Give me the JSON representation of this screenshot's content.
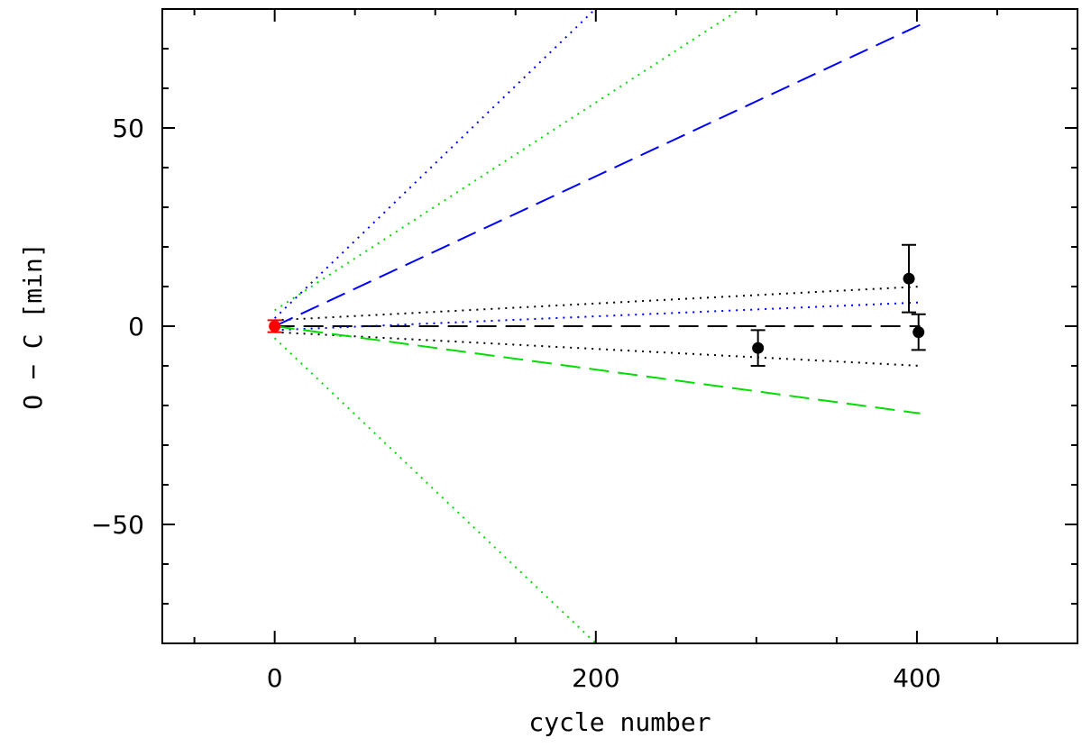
{
  "chart_data": {
    "type": "scatter",
    "title": "",
    "xlabel": "cycle number",
    "ylabel": "O − C [min]",
    "xlim": [
      -70,
      500
    ],
    "ylim": [
      -80,
      80
    ],
    "xticks_major": [
      0,
      200,
      400
    ],
    "xticks_minor_step": 50,
    "yticks_major": [
      -50,
      0,
      50
    ],
    "yticks_minor_step": 10,
    "grid": false,
    "legend": "none",
    "lines": [
      {
        "color": "#000000",
        "style": "dashed",
        "x": [
          0,
          402
        ],
        "y": [
          0,
          0
        ]
      },
      {
        "color": "#000000",
        "style": "dotted",
        "x": [
          0,
          402
        ],
        "y": [
          1.5,
          10
        ]
      },
      {
        "color": "#000000",
        "style": "dotted",
        "x": [
          0,
          402
        ],
        "y": [
          -1.5,
          -10
        ]
      },
      {
        "color": "#0000ff",
        "style": "dashed",
        "x": [
          0,
          402
        ],
        "y": [
          0,
          76
        ]
      },
      {
        "color": "#0000ff",
        "style": "dotted",
        "x": [
          0,
          215
        ],
        "y": [
          2,
          86
        ]
      },
      {
        "color": "#0000ff",
        "style": "dotted",
        "x": [
          0,
          402
        ],
        "y": [
          -1,
          6
        ]
      },
      {
        "color": "#00dd00",
        "style": "dashed",
        "x": [
          0,
          402
        ],
        "y": [
          0,
          -22
        ]
      },
      {
        "color": "#00dd00",
        "style": "dotted",
        "x": [
          0,
          290
        ],
        "y": [
          4,
          80
        ]
      },
      {
        "color": "#00dd00",
        "style": "dotted",
        "x": [
          0,
          200
        ],
        "y": [
          -3,
          -80
        ]
      }
    ],
    "points": [
      {
        "x": 0,
        "y": 0,
        "yerr": 1.5,
        "color": "#ff0000"
      },
      {
        "x": 301,
        "y": -5.5,
        "yerr": 4.5,
        "color": "#000000"
      },
      {
        "x": 395,
        "y": 12,
        "yerr": 8.5,
        "color": "#000000"
      },
      {
        "x": 401,
        "y": -1.5,
        "yerr": 4.5,
        "color": "#000000"
      }
    ]
  }
}
